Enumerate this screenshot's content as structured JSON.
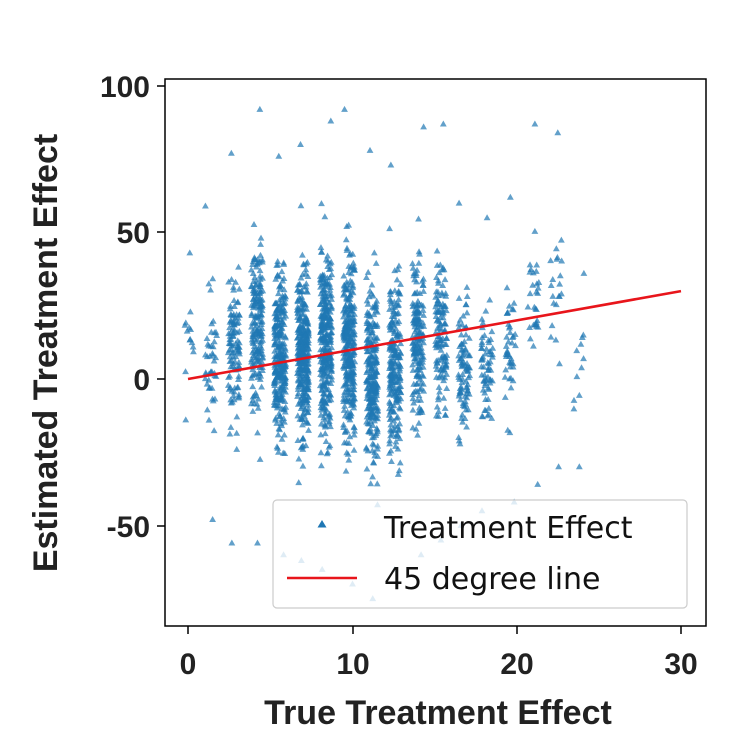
{
  "chart_data": {
    "type": "scatter",
    "xlabel": "True Treatment Effect",
    "ylabel": "Estimated Treatment Effect",
    "xlim": [
      -1.5,
      31.5
    ],
    "ylim": [
      -85,
      103
    ],
    "x_ticks": [
      "0",
      "10",
      "20",
      "30"
    ],
    "y_ticks": [
      "100",
      "50",
      "0",
      "-50"
    ],
    "grid": false,
    "legend_position": "lower-right",
    "series": [
      {
        "name": "Treatment Effect",
        "kind": "scatter",
        "marker": "triangle",
        "color": "#1f77b4",
        "description": "Observations clustered in vertical bands at discrete true-effect values",
        "bands": [
          {
            "x": 0.0,
            "count": 14,
            "y_min": -14,
            "y_max": 43
          },
          {
            "x": 1.4,
            "count": 45,
            "y_min": -48,
            "y_max": 59
          },
          {
            "x": 2.8,
            "count": 110,
            "y_min": -56,
            "y_max": 77
          },
          {
            "x": 4.2,
            "count": 190,
            "y_min": -56,
            "y_max": 92
          },
          {
            "x": 5.6,
            "count": 280,
            "y_min": -60,
            "y_max": 76
          },
          {
            "x": 7.0,
            "count": 330,
            "y_min": -62,
            "y_max": 80
          },
          {
            "x": 8.4,
            "count": 320,
            "y_min": -65,
            "y_max": 88
          },
          {
            "x": 9.8,
            "count": 300,
            "y_min": -70,
            "y_max": 92
          },
          {
            "x": 11.2,
            "count": 260,
            "y_min": -75,
            "y_max": 78
          },
          {
            "x": 12.6,
            "count": 220,
            "y_min": -65,
            "y_max": 73
          },
          {
            "x": 14.0,
            "count": 170,
            "y_min": -60,
            "y_max": 86
          },
          {
            "x": 15.4,
            "count": 130,
            "y_min": -55,
            "y_max": 87
          },
          {
            "x": 16.8,
            "count": 95,
            "y_min": -50,
            "y_max": 60
          },
          {
            "x": 18.2,
            "count": 65,
            "y_min": -45,
            "y_max": 55
          },
          {
            "x": 19.6,
            "count": 45,
            "y_min": -42,
            "y_max": 62
          },
          {
            "x": 21.0,
            "count": 30,
            "y_min": -36,
            "y_max": 87
          },
          {
            "x": 22.4,
            "count": 22,
            "y_min": -30,
            "y_max": 84
          },
          {
            "x": 23.8,
            "count": 12,
            "y_min": -30,
            "y_max": 36
          }
        ]
      },
      {
        "name": "45 degree line",
        "kind": "line",
        "color": "#e8151b",
        "x": [
          0,
          30
        ],
        "y": [
          0,
          30
        ]
      }
    ]
  }
}
